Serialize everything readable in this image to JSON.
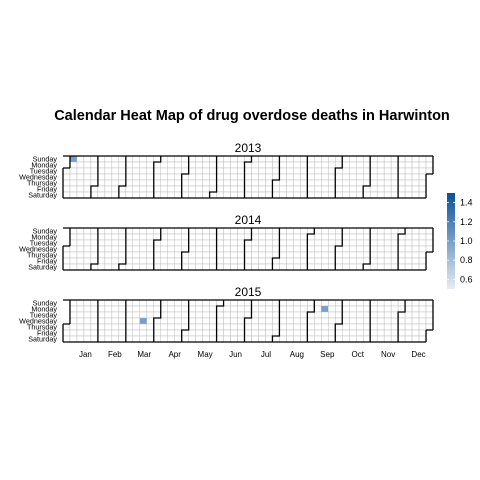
{
  "chart_data": {
    "type": "heatmap",
    "title": "Calendar Heat Map of drug overdose deaths in Harwinton",
    "facets": [
      "2013",
      "2014",
      "2015"
    ],
    "weekdays": [
      "Sunday",
      "Monday",
      "Tuesday",
      "Wednesday",
      "Thursday",
      "Friday",
      "Saturday"
    ],
    "months": [
      "Jan",
      "Feb",
      "Mar",
      "Apr",
      "May",
      "Jun",
      "Jul",
      "Aug",
      "Sep",
      "Oct",
      "Nov",
      "Dec"
    ],
    "values": [
      {
        "date": "2013-01-06",
        "value": 1
      },
      {
        "date": "2015-03-18",
        "value": 1
      },
      {
        "date": "2015-09-14",
        "value": 1
      }
    ],
    "legend": {
      "ticks": [
        0.6,
        0.8,
        1.0,
        1.2,
        1.4
      ],
      "tick_labels": [
        "0.6",
        "0.8",
        "1.0",
        "1.2",
        "1.4"
      ],
      "range": [
        0.5,
        1.5
      ],
      "low_color": "#e8ecf3",
      "high_color": "#08519c",
      "placement": "right"
    },
    "colors": {
      "empty_cell": "#ffffff",
      "grid_line": "#b3b3b3",
      "month_border": "#000000"
    }
  }
}
